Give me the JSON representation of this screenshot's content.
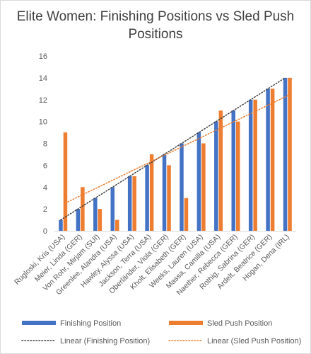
{
  "chart_data": {
    "type": "bar",
    "title": "Elite Women: Finishing Positions vs Sled Push Positions",
    "xlabel": "",
    "ylabel": "",
    "ylim": [
      0,
      16
    ],
    "yticks": [
      0,
      2,
      4,
      6,
      8,
      10,
      12,
      14,
      16
    ],
    "grid": false,
    "legend_position": "bottom",
    "categories": [
      "Rugloski, Kris (USA)",
      "Meier, Linda (GER)",
      "Von Rohr, Mirjam (SUI)",
      "Greenlee, Alandra (USA)",
      "Hawley, Alyssa (USA)",
      "Jackson, Terra (USA)",
      "Oberländer, Viola (GER)",
      "Kholt, Elisabeth (GER)",
      "Weeks, Lauren (USA)",
      "Massa, Camilla (USA)",
      "Naether, Rebecca (GER)",
      "Rothig, Sabrina (GER)",
      "Ardelt, Beatrice (GER)",
      "Hogan, Dena (IRL)"
    ],
    "series": [
      {
        "name": "Finishing Position",
        "color": "#4472c4",
        "values": [
          1,
          2,
          3,
          4,
          5,
          6,
          7,
          8,
          9,
          10,
          11,
          12,
          13,
          14
        ]
      },
      {
        "name": "Sled Push Position",
        "color": "#ed7d31",
        "values": [
          9,
          4,
          2,
          1,
          5,
          7,
          6,
          3,
          8,
          11,
          10,
          12,
          13,
          14
        ]
      }
    ],
    "trendlines": [
      {
        "name": "Linear (Finishing Position)",
        "series": "Finishing Position",
        "type": "linear",
        "color": "#404040",
        "style": "dotted"
      },
      {
        "name": "Linear (Sled Push Position)",
        "series": "Sled Push Position",
        "type": "linear",
        "color": "#ed7d31",
        "style": "dotted"
      }
    ]
  }
}
